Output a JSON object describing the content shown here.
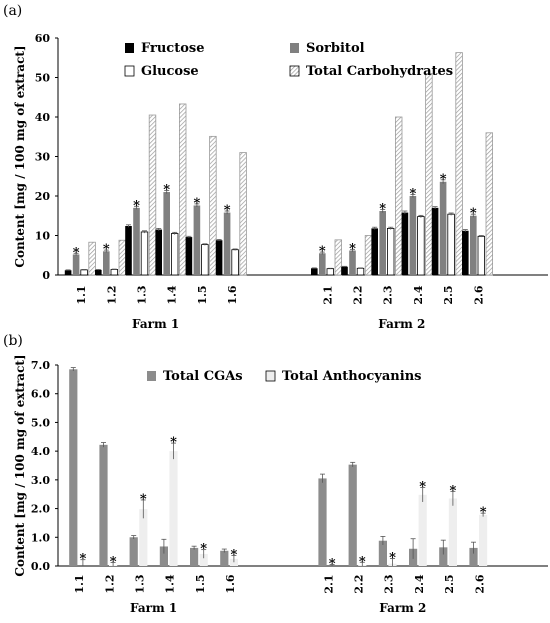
{
  "chart_data": [
    {
      "panel_label": "(a)",
      "type": "bar",
      "ylabel": "Content  [mg / 100 mg of extract]",
      "ylim": [
        0,
        60
      ],
      "yticks": [
        0,
        10,
        20,
        30,
        40,
        50,
        60
      ],
      "grid": false,
      "legend": "top, two columns",
      "groups": [
        {
          "label": "Farm 1",
          "categories": [
            "1.1",
            "1.2",
            "1.3",
            "1.4",
            "1.5",
            "1.6"
          ]
        },
        {
          "label": "Farm 2",
          "categories": [
            "2.1",
            "2.2",
            "2.3",
            "2.4",
            "2.5",
            "2.6"
          ]
        }
      ],
      "series": [
        {
          "name": "Fructose",
          "color": "#000000",
          "pattern": "solid",
          "values": [
            1.2,
            1.3,
            12.4,
            11.5,
            9.6,
            8.8,
            1.7,
            2.1,
            11.8,
            15.8,
            17.0,
            11.2
          ],
          "errors": [
            0.1,
            0.1,
            0.3,
            0.3,
            0.2,
            0.2,
            0.1,
            0.1,
            0.3,
            0.4,
            0.3,
            0.3
          ]
        },
        {
          "name": "Sorbitol",
          "color": "#808080",
          "pattern": "solid",
          "values": [
            5.2,
            6.0,
            17.0,
            21.0,
            17.6,
            15.8,
            5.5,
            6.2,
            16.2,
            20.0,
            23.6,
            15.0
          ],
          "errors": [
            0.3,
            0.3,
            0.4,
            0.4,
            0.4,
            0.4,
            0.3,
            0.3,
            0.4,
            0.4,
            0.5,
            0.4
          ],
          "markers": [
            "*",
            "*",
            "*",
            "*",
            "*",
            "*",
            "*",
            "*",
            "*",
            "*",
            "*",
            "*"
          ]
        },
        {
          "name": "Glucose",
          "color": "#ffffff",
          "pattern": "outline",
          "values": [
            1.3,
            1.4,
            10.9,
            10.5,
            7.7,
            6.4,
            1.6,
            1.7,
            11.8,
            14.8,
            15.4,
            9.8
          ],
          "errors": [
            0.1,
            0.1,
            0.3,
            0.3,
            0.2,
            0.2,
            0.1,
            0.1,
            0.3,
            0.3,
            0.3,
            0.2
          ]
        },
        {
          "name": "Total Carbohydrates",
          "color": "#bdbdbd",
          "pattern": "hatched",
          "values": [
            8.3,
            8.8,
            40.5,
            43.3,
            35.1,
            31.0,
            8.9,
            10.0,
            40.0,
            51.0,
            56.3,
            36.0
          ],
          "errors": [
            0,
            0,
            0,
            0,
            0,
            0,
            0,
            0,
            0,
            0,
            0,
            0
          ]
        }
      ]
    },
    {
      "panel_label": "(b)",
      "type": "bar",
      "ylabel": "Content  [mg / 100 mg of extract]",
      "ylim": [
        0,
        7
      ],
      "yticks": [
        "0.0",
        "1.0",
        "2.0",
        "3.0",
        "4.0",
        "5.0",
        "6.0",
        "7.0"
      ],
      "grid": false,
      "legend": "top",
      "groups": [
        {
          "label": "Farm 1",
          "categories": [
            "1.1",
            "1.2",
            "1.3",
            "1.4",
            "1.5",
            "1.6"
          ]
        },
        {
          "label": "Farm 2",
          "categories": [
            "2.1",
            "2.2",
            "2.3",
            "2.4",
            "2.5",
            "2.6"
          ]
        }
      ],
      "series": [
        {
          "name": "Total CGAs",
          "color": "#8c8c8c",
          "pattern": "solid",
          "values": [
            6.85,
            4.22,
            1.0,
            0.68,
            0.63,
            0.53,
            3.05,
            3.53,
            0.88,
            0.6,
            0.65,
            0.63
          ],
          "errors": [
            0.06,
            0.08,
            0.06,
            0.25,
            0.06,
            0.06,
            0.15,
            0.08,
            0.15,
            0.35,
            0.25,
            0.2
          ]
        },
        {
          "name": "Total Anthocyanins",
          "color": "#eeeeee",
          "pattern": "solid",
          "values": [
            0.0,
            0.02,
            1.98,
            4.0,
            0.42,
            0.25,
            0.0,
            0.03,
            0.08,
            2.48,
            2.35,
            1.78
          ],
          "errors": [
            0.22,
            0.1,
            0.32,
            0.28,
            0.15,
            0.12,
            0.05,
            0.1,
            0.18,
            0.25,
            0.25,
            0.06
          ],
          "markers": [
            "*",
            "*",
            "*",
            "*",
            "*",
            "*",
            "*",
            "*",
            "*",
            "*",
            "*",
            "*"
          ]
        }
      ]
    }
  ]
}
